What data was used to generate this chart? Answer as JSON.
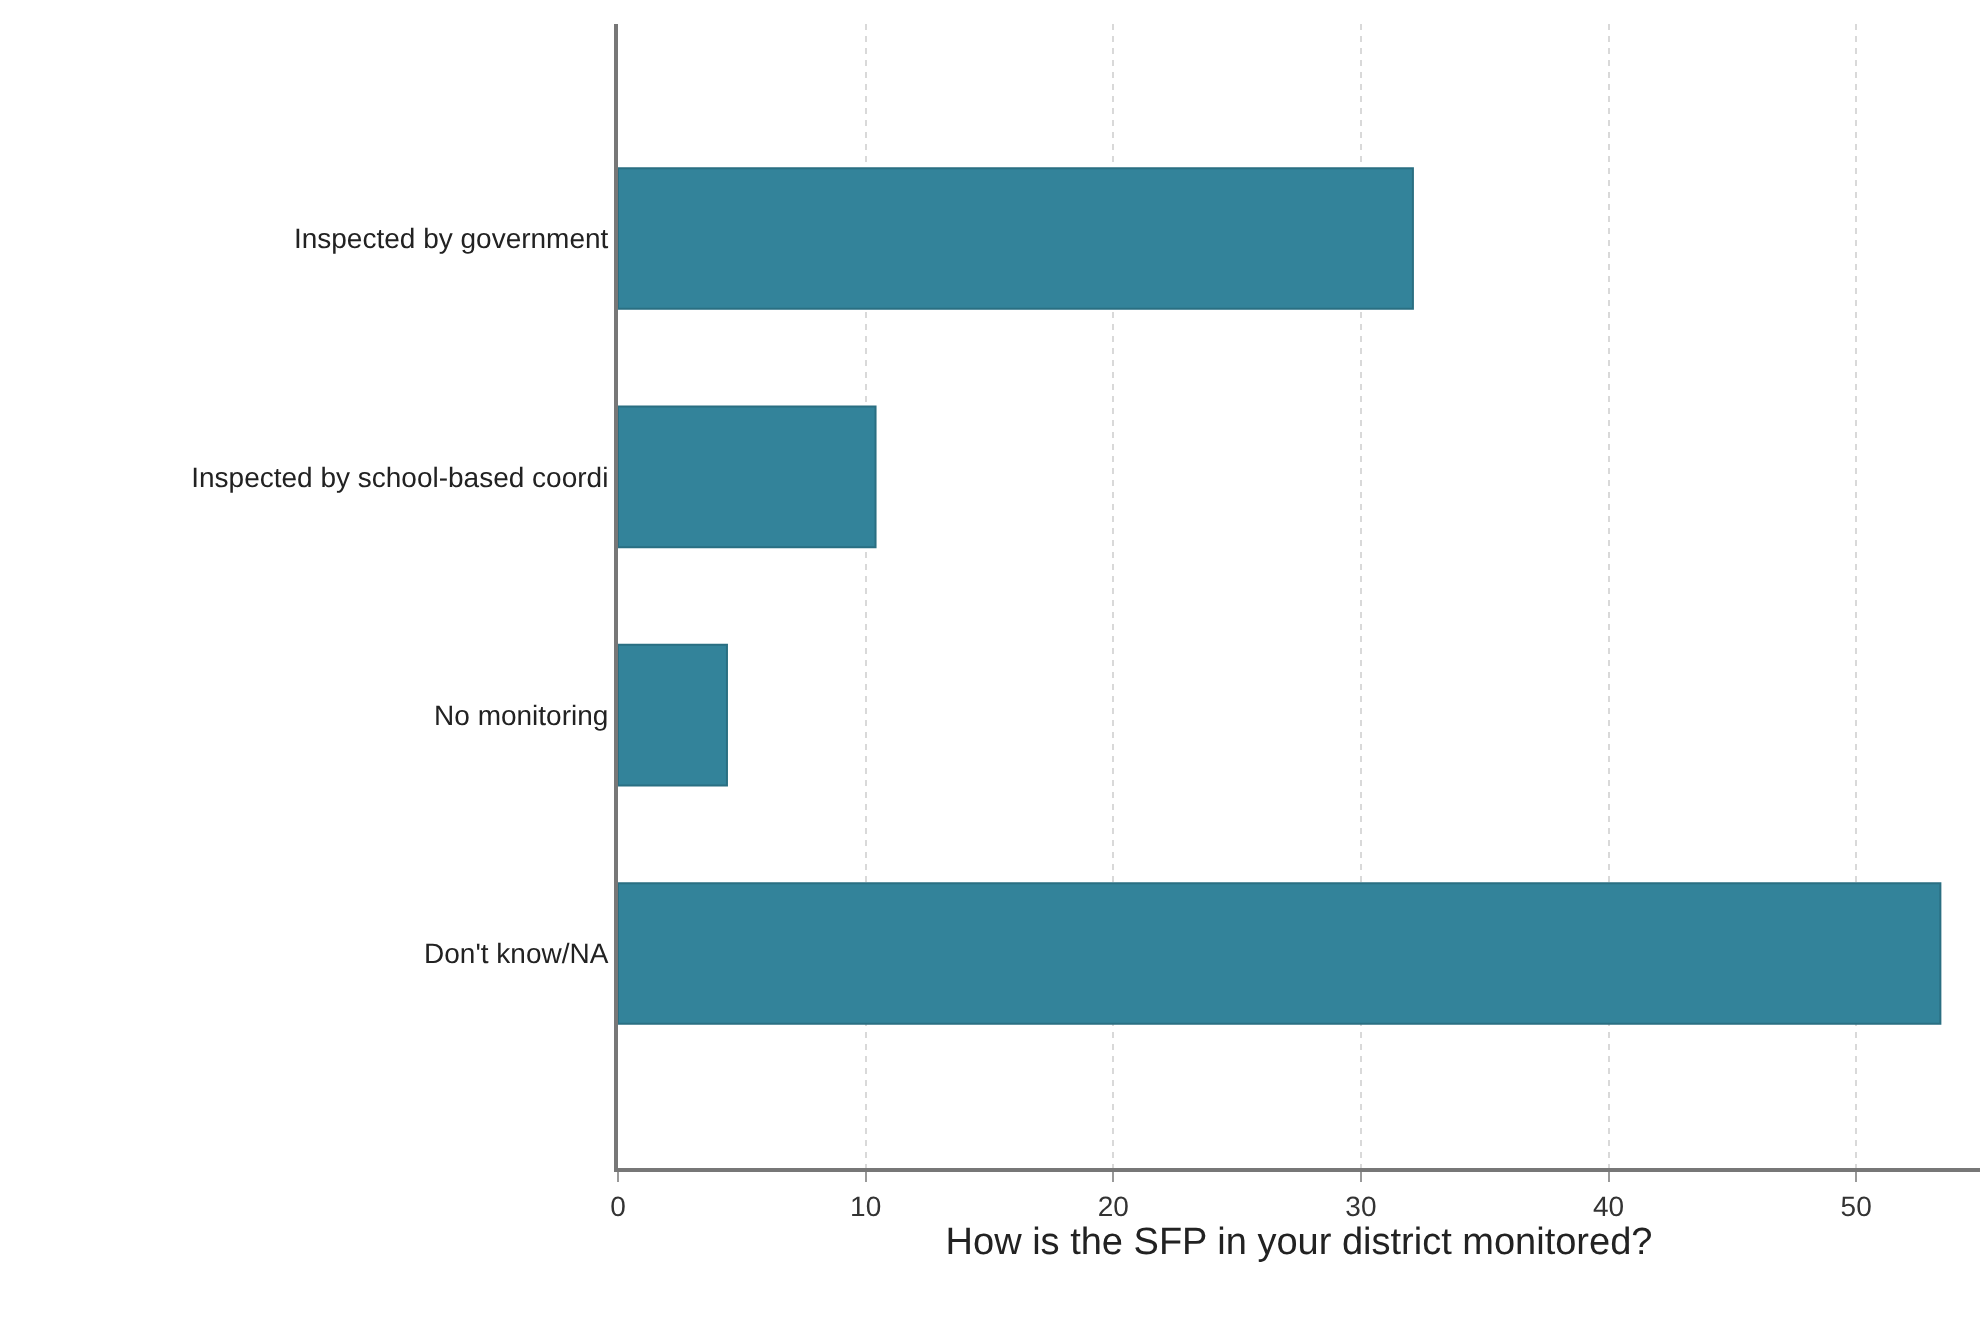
{
  "chart_data": {
    "type": "bar",
    "orientation": "horizontal",
    "xlabel": "How is the SFP in your district monitored?",
    "categories": [
      "Inspected by government",
      "Inspected by school-based coordi",
      "No monitoring",
      "Don't know/NA"
    ],
    "values": [
      32.1,
      10.4,
      4.4,
      53.4
    ],
    "color": "#33839a",
    "xlim": [
      0,
      55
    ],
    "xticks": [
      0,
      10,
      20,
      30,
      40,
      50
    ],
    "grid": "x",
    "legend": false
  }
}
